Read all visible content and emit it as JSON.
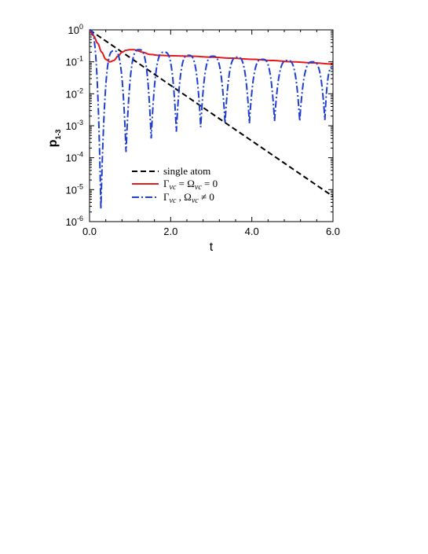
{
  "chart_data": {
    "type": "line",
    "title": "",
    "xlabel": "t",
    "ylabel": "p",
    "ylabel_sub": "1-3",
    "xlim": [
      0,
      6
    ],
    "ylim": [
      1e-06,
      1
    ],
    "y_scale": "log",
    "x_ticks": [
      0,
      2,
      4,
      6
    ],
    "x_tick_labels": [
      "0.0",
      "2.0",
      "4.0",
      "6.0"
    ],
    "y_tick_exponents": [
      "0",
      "-1",
      "-2",
      "-3",
      "-4",
      "-5",
      "-6"
    ],
    "y_tick_base": "10",
    "grid": false,
    "legend_position": "bottom-center",
    "series": [
      {
        "name": "single atom",
        "color": "#000000",
        "dash": "dashed",
        "x": [
          0,
          1,
          2,
          3,
          4,
          5,
          6
        ],
        "y": [
          1.0,
          0.135,
          0.0183,
          0.00248,
          0.000335,
          4.54e-05,
          6.14e-06
        ]
      },
      {
        "name": "Γ_vc = Ω_vc = 0",
        "name_parts": [
          "Γ",
          "vc",
          " = Ω",
          "vc",
          " = 0"
        ],
        "color": "#e31a1c",
        "dash": "solid",
        "x": [
          0,
          0.1,
          0.2,
          0.3,
          0.4,
          0.5,
          0.6,
          0.7,
          0.8,
          0.9,
          1.0,
          1.1,
          1.2,
          1.3,
          1.5,
          1.7,
          2.0,
          2.5,
          3.0,
          3.5,
          4.0,
          4.5,
          5.0,
          5.5,
          6.0
        ],
        "y": [
          1.0,
          0.65,
          0.38,
          0.2,
          0.12,
          0.1,
          0.11,
          0.15,
          0.2,
          0.23,
          0.24,
          0.24,
          0.22,
          0.2,
          0.17,
          0.16,
          0.155,
          0.15,
          0.14,
          0.13,
          0.12,
          0.11,
          0.1,
          0.093,
          0.085
        ]
      },
      {
        "name": "Γ_vc , Ω_vc ≠ 0",
        "name_parts": [
          "Γ",
          "vc",
          " , Ω",
          "vc",
          " ≠ 0"
        ],
        "color": "#1f3fd1",
        "dash": "dashdot",
        "oscillation": {
          "minima_t": [
            0.28,
            0.9,
            1.52,
            2.14,
            2.74,
            3.34,
            3.94,
            4.56,
            5.18,
            5.8
          ],
          "minima_p": [
            2.5e-06,
            0.00015,
            0.0004,
            0.00065,
            0.0009,
            0.0012,
            0.0012,
            0.0014,
            0.0014,
            0.0015
          ],
          "maxima_t": [
            0,
            0.6,
            1.22,
            1.84,
            2.44,
            3.04,
            3.64,
            4.26,
            4.88,
            5.5
          ],
          "maxima_p": [
            1.0,
            0.22,
            0.24,
            0.2,
            0.16,
            0.15,
            0.14,
            0.12,
            0.11,
            0.1
          ],
          "end_t": 6.0,
          "end_p": 0.07
        }
      }
    ]
  }
}
